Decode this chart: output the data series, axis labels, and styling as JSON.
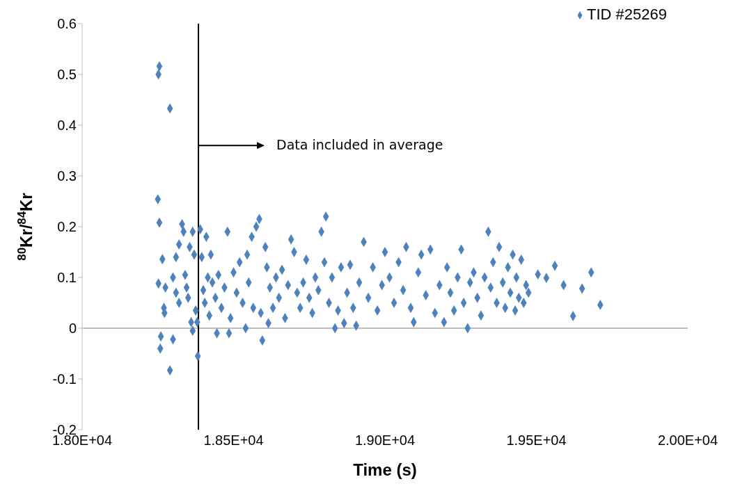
{
  "chart_data": {
    "type": "scatter",
    "xlabel": "Time (s)",
    "ylabel": "$^{80}$Kr/$^{84}$Kr",
    "xlim": [
      18000,
      20000
    ],
    "xticks": [
      {
        "value": 18000,
        "label": "1.80E+04"
      },
      {
        "value": 18500,
        "label": "1.85E+04"
      },
      {
        "value": 19000,
        "label": "1.90E+04"
      },
      {
        "value": 19500,
        "label": "1.95E+04"
      },
      {
        "value": 20000,
        "label": "2.00E+04"
      }
    ],
    "ylim": [
      -0.2,
      0.6
    ],
    "yticks": [
      -0.2,
      -0.1,
      0,
      0.1,
      0.2,
      0.3,
      0.4,
      0.5,
      0.6
    ],
    "grid": false,
    "legend": "top right",
    "marker": "diamond",
    "ref_lines": [
      {
        "axis": "y",
        "value": 0,
        "color": "#bfbfbf"
      },
      {
        "axis": "x",
        "value": 18384,
        "color": "#000000"
      }
    ],
    "annotations": [
      "Data included in average"
    ],
    "x": [
      18255,
      18252,
      18290,
      18250,
      18255,
      18252,
      18265,
      18275,
      18270,
      18272,
      18258,
      18260,
      18290,
      18300,
      18300,
      18310,
      18320,
      18330,
      18335,
      18320,
      18310,
      18340,
      18345,
      18350,
      18355,
      18360,
      18365,
      18370,
      18380,
      18365,
      18382,
      18375,
      18390,
      18395,
      18400,
      18405,
      18410,
      18415,
      18420,
      18425,
      18430,
      18440,
      18445,
      18450,
      18460,
      18470,
      18480,
      18485,
      18490,
      18500,
      18510,
      18520,
      18530,
      18540,
      18545,
      18550,
      18560,
      18565,
      18575,
      18585,
      18590,
      18595,
      18605,
      18610,
      18615,
      18620,
      18630,
      18640,
      18650,
      18660,
      18670,
      18680,
      18690,
      18700,
      18710,
      18720,
      18730,
      18740,
      18750,
      18760,
      18770,
      18780,
      18790,
      18800,
      18805,
      18815,
      18825,
      18835,
      18845,
      18855,
      18865,
      18875,
      18885,
      18895,
      18905,
      18915,
      18930,
      18945,
      18960,
      18975,
      18990,
      19000,
      19015,
      19030,
      19045,
      19060,
      19070,
      19085,
      19095,
      19110,
      19120,
      19135,
      19150,
      19165,
      19180,
      19195,
      19205,
      19216,
      19228,
      19240,
      19252,
      19260,
      19273,
      19281,
      19293,
      19305,
      19317,
      19329,
      19341,
      19349,
      19357,
      19369,
      19377,
      19389,
      19397,
      19406,
      19414,
      19422,
      19430,
      19434,
      19442,
      19450,
      19458,
      19466,
      19474,
      19505,
      19533,
      19561,
      19590,
      19621,
      19651,
      19681,
      19711
    ],
    "series": [
      {
        "name": "TID #25269",
        "color": "#4f81bd",
        "values": [
          0.516,
          0.5,
          0.433,
          0.254,
          0.208,
          0.088,
          0.136,
          0.08,
          0.04,
          0.03,
          -0.04,
          -0.016,
          -0.083,
          -0.022,
          0.1,
          0.14,
          0.165,
          0.205,
          0.19,
          0.05,
          0.07,
          0.105,
          0.08,
          0.06,
          0.16,
          0.012,
          0.19,
          0.145,
          0.012,
          -0.005,
          -0.055,
          0.035,
          0.195,
          0.14,
          0.075,
          0.05,
          0.18,
          0.1,
          0.025,
          0.145,
          0.09,
          0.06,
          -0.01,
          0.105,
          0.04,
          0.08,
          0.19,
          -0.01,
          0.02,
          0.11,
          0.07,
          0.13,
          0.05,
          0.0,
          0.145,
          0.09,
          0.18,
          0.04,
          0.2,
          0.215,
          0.03,
          -0.024,
          0.16,
          0.12,
          0.01,
          0.08,
          0.04,
          0.1,
          0.06,
          0.115,
          0.02,
          0.085,
          0.175,
          0.15,
          0.07,
          0.04,
          0.09,
          0.135,
          0.06,
          0.03,
          0.1,
          0.075,
          0.19,
          0.13,
          0.22,
          0.05,
          0.1,
          0.0,
          0.035,
          0.12,
          0.01,
          0.07,
          0.125,
          0.04,
          0.005,
          0.09,
          0.17,
          0.06,
          0.12,
          0.035,
          0.085,
          0.15,
          0.1,
          0.05,
          0.13,
          0.075,
          0.16,
          0.04,
          0.012,
          0.11,
          0.145,
          0.065,
          0.155,
          0.03,
          0.085,
          0.012,
          0.12,
          0.07,
          0.035,
          0.1,
          0.155,
          0.05,
          0.0,
          0.09,
          0.11,
          0.06,
          0.025,
          0.1,
          0.19,
          0.08,
          0.13,
          0.05,
          0.16,
          0.09,
          0.04,
          0.12,
          0.07,
          0.145,
          0.035,
          0.1,
          0.06,
          0.135,
          0.05,
          0.085,
          0.07,
          0.106,
          0.099,
          0.123,
          0.085,
          0.024,
          0.078,
          0.11,
          0.046
        ]
      }
    ]
  }
}
